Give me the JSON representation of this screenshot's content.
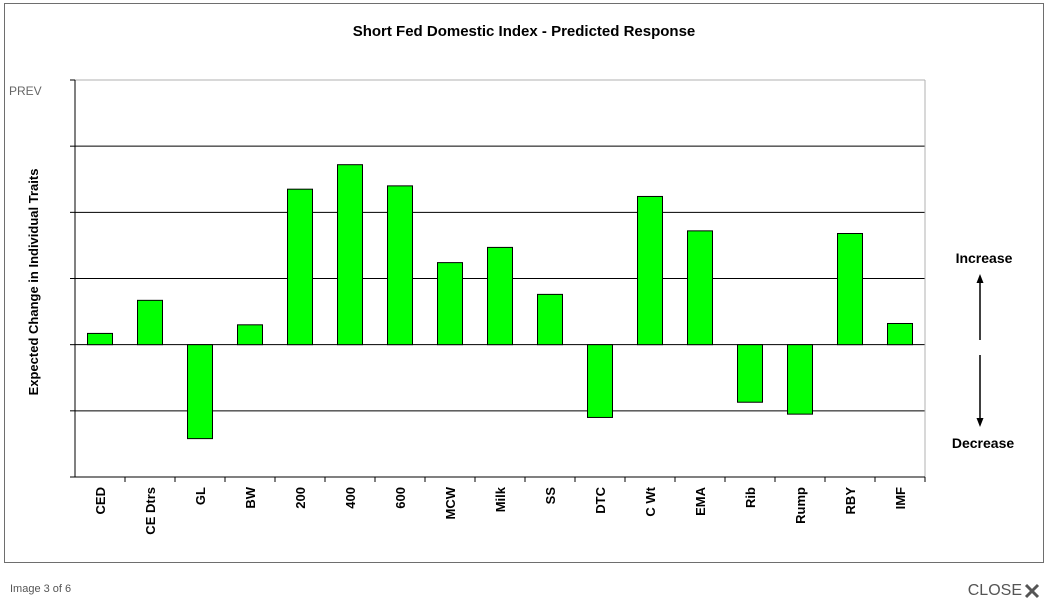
{
  "nav": {
    "prev_label": "PREV",
    "counter": "Image 3 of 6",
    "close_label": "CLOSE"
  },
  "icons": {
    "close": "close-x-icon",
    "increase": "arrow-up-icon",
    "decrease": "arrow-down-icon"
  },
  "colors": {
    "bar_fill": "#00ff00",
    "bar_stroke": "#000000",
    "gridline": "#000000"
  },
  "chart_data": {
    "type": "bar",
    "title": "Short Fed Domestic Index - Predicted Response",
    "ylabel": "Expected Change in Individual Traits",
    "xlabel": "",
    "categories": [
      "CED",
      "CE Dtrs",
      "GL",
      "BW",
      "200",
      "400",
      "600",
      "MCW",
      "Milk",
      "SS",
      "DTC",
      "C Wt",
      "EMA",
      "Rib",
      "Rump",
      "RBY",
      "IMF"
    ],
    "values": [
      0.17,
      0.67,
      -1.42,
      0.3,
      2.35,
      2.72,
      2.4,
      1.24,
      1.47,
      0.76,
      -1.1,
      2.24,
      1.72,
      -0.87,
      -1.05,
      1.68,
      0.32
    ],
    "ylim": [
      -2,
      4
    ],
    "y_ticks": [
      -2,
      -1,
      0,
      1,
      2,
      3,
      4
    ],
    "y_tick_labels_shown": false,
    "grid": "horizontal",
    "annotations": {
      "increase": "Increase",
      "decrease": "Decrease"
    }
  }
}
